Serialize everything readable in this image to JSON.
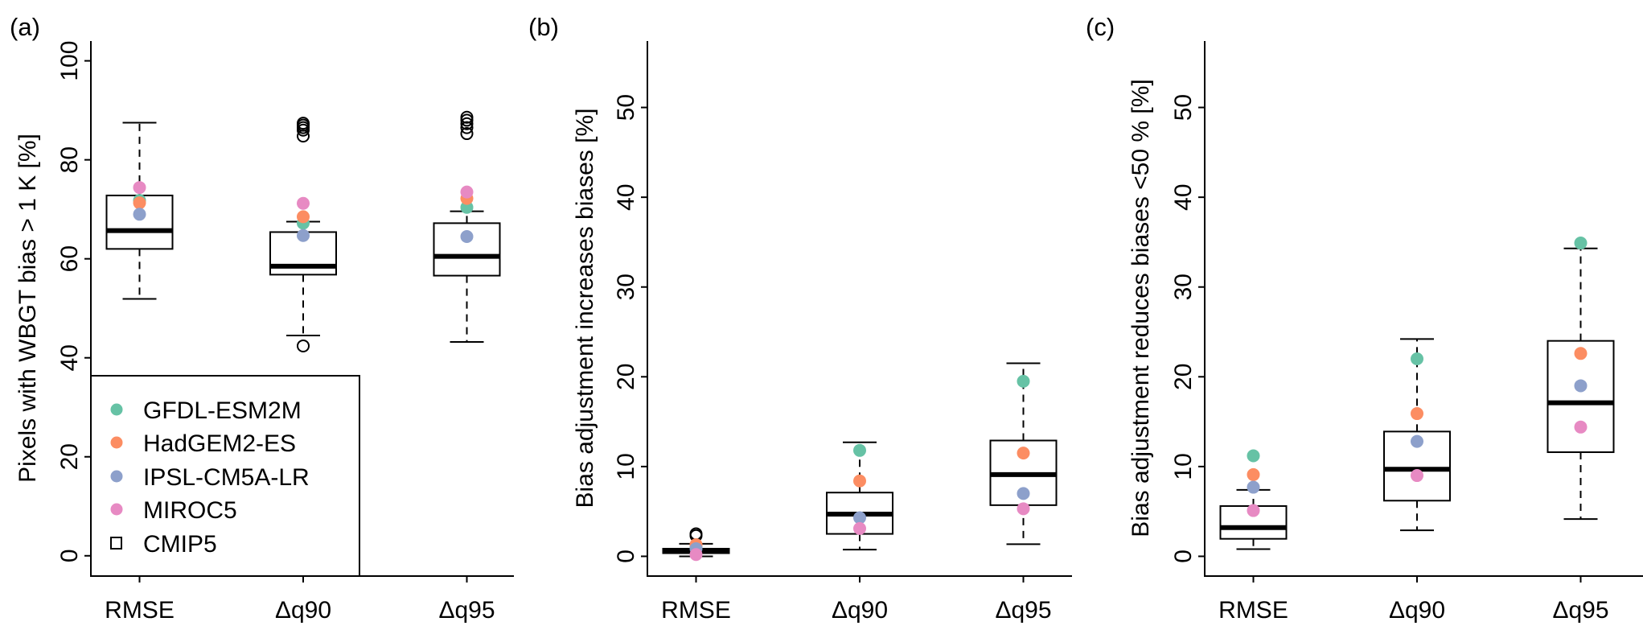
{
  "chart_data": [
    {
      "type": "boxplot",
      "panel_label": "(a)",
      "ylabel": "Pixels with WBGT bias > 1 K [%]",
      "xlabel": "",
      "ylim": [
        -4.1,
        104
      ],
      "yticks": [
        0,
        20,
        40,
        60,
        80,
        100
      ],
      "categories": [
        "RMSE",
        "Δq90",
        "Δq95"
      ],
      "boxes": [
        {
          "whisker_low": 51.9,
          "q1": 62.0,
          "median": 65.7,
          "q3": 72.8,
          "whisker_high": 87.5,
          "outliers": []
        },
        {
          "whisker_low": 44.5,
          "q1": 56.8,
          "median": 58.5,
          "q3": 65.4,
          "whisker_high": 67.5,
          "outliers": [
            42.4,
            84.8,
            86.0,
            86.5,
            87.0,
            87.4
          ]
        },
        {
          "whisker_low": 43.2,
          "q1": 56.6,
          "median": 60.5,
          "q3": 67.2,
          "whisker_high": 69.6,
          "outliers": [
            85.3,
            86.5,
            87.3,
            88.0,
            88.6
          ]
        }
      ],
      "series": [
        {
          "name": "GFDL-ESM2M",
          "values": [
            71.8,
            67.2,
            70.4
          ]
        },
        {
          "name": "HadGEM2-ES",
          "values": [
            71.3,
            68.5,
            72.2
          ]
        },
        {
          "name": "IPSL-CM5A-LR",
          "values": [
            69.0,
            64.7,
            64.5
          ]
        },
        {
          "name": "MIROC5",
          "values": [
            74.4,
            71.2,
            73.5
          ]
        }
      ],
      "legend": {
        "placement": "bottom-left",
        "entries": [
          {
            "label": "GFDL-ESM2M",
            "symbol": "dot",
            "color": "#66c2a5"
          },
          {
            "label": "HadGEM2-ES",
            "symbol": "dot",
            "color": "#fc8d62"
          },
          {
            "label": "IPSL-CM5A-LR",
            "symbol": "dot",
            "color": "#8da0cb"
          },
          {
            "label": "MIROC5",
            "symbol": "dot",
            "color": "#e78ac3"
          },
          {
            "label": "CMIP5",
            "symbol": "box",
            "color": "#000000"
          }
        ]
      }
    },
    {
      "type": "boxplot",
      "panel_label": "(b)",
      "ylabel": "Bias adjustment increases biases [%]",
      "xlabel": "",
      "ylim": [
        -2.2,
        57.4
      ],
      "yticks": [
        0,
        10,
        20,
        30,
        40,
        50
      ],
      "categories": [
        "RMSE",
        "Δq90",
        "Δq95"
      ],
      "boxes": [
        {
          "whisker_low": 0.0,
          "q1": 0.35,
          "median": 0.6,
          "q3": 0.85,
          "whisker_high": 1.4,
          "outliers": [
            2.3,
            2.5
          ]
        },
        {
          "whisker_low": 0.75,
          "q1": 2.5,
          "median": 4.7,
          "q3": 7.1,
          "whisker_high": 12.7,
          "outliers": []
        },
        {
          "whisker_low": 1.35,
          "q1": 5.7,
          "median": 9.1,
          "q3": 12.9,
          "whisker_high": 21.5,
          "outliers": []
        }
      ],
      "series": [
        {
          "name": "GFDL-ESM2M",
          "values": [
            1.1,
            11.8,
            19.5
          ]
        },
        {
          "name": "HadGEM2-ES",
          "values": [
            1.3,
            8.4,
            11.5
          ]
        },
        {
          "name": "IPSL-CM5A-LR",
          "values": [
            0.85,
            4.3,
            7.0
          ]
        },
        {
          "name": "MIROC5",
          "values": [
            0.2,
            3.1,
            5.3
          ]
        }
      ]
    },
    {
      "type": "boxplot",
      "panel_label": "(c)",
      "ylabel": "Bias adjustment reduces biases <50 % [%]",
      "xlabel": "",
      "ylim": [
        -2.2,
        57.4
      ],
      "yticks": [
        0,
        10,
        20,
        30,
        40,
        50
      ],
      "categories": [
        "RMSE",
        "Δq90",
        "Δq95"
      ],
      "boxes": [
        {
          "whisker_low": 0.8,
          "q1": 1.95,
          "median": 3.2,
          "q3": 5.6,
          "whisker_high": 7.4,
          "outliers": []
        },
        {
          "whisker_low": 2.9,
          "q1": 6.2,
          "median": 9.7,
          "q3": 13.9,
          "whisker_high": 24.2,
          "outliers": []
        },
        {
          "whisker_low": 4.15,
          "q1": 11.6,
          "median": 17.1,
          "q3": 24.0,
          "whisker_high": 34.3,
          "outliers": []
        }
      ],
      "series": [
        {
          "name": "GFDL-ESM2M",
          "values": [
            11.2,
            22.0,
            34.9
          ]
        },
        {
          "name": "HadGEM2-ES",
          "values": [
            9.1,
            15.9,
            22.6
          ]
        },
        {
          "name": "IPSL-CM5A-LR",
          "values": [
            7.7,
            12.8,
            19.0
          ]
        },
        {
          "name": "MIROC5",
          "values": [
            5.1,
            9.0,
            14.4
          ]
        }
      ]
    }
  ],
  "series_colors": {
    "GFDL-ESM2M": "#66c2a5",
    "HadGEM2-ES": "#fc8d62",
    "IPSL-CM5A-LR": "#8da0cb",
    "MIROC5": "#e78ac3"
  }
}
